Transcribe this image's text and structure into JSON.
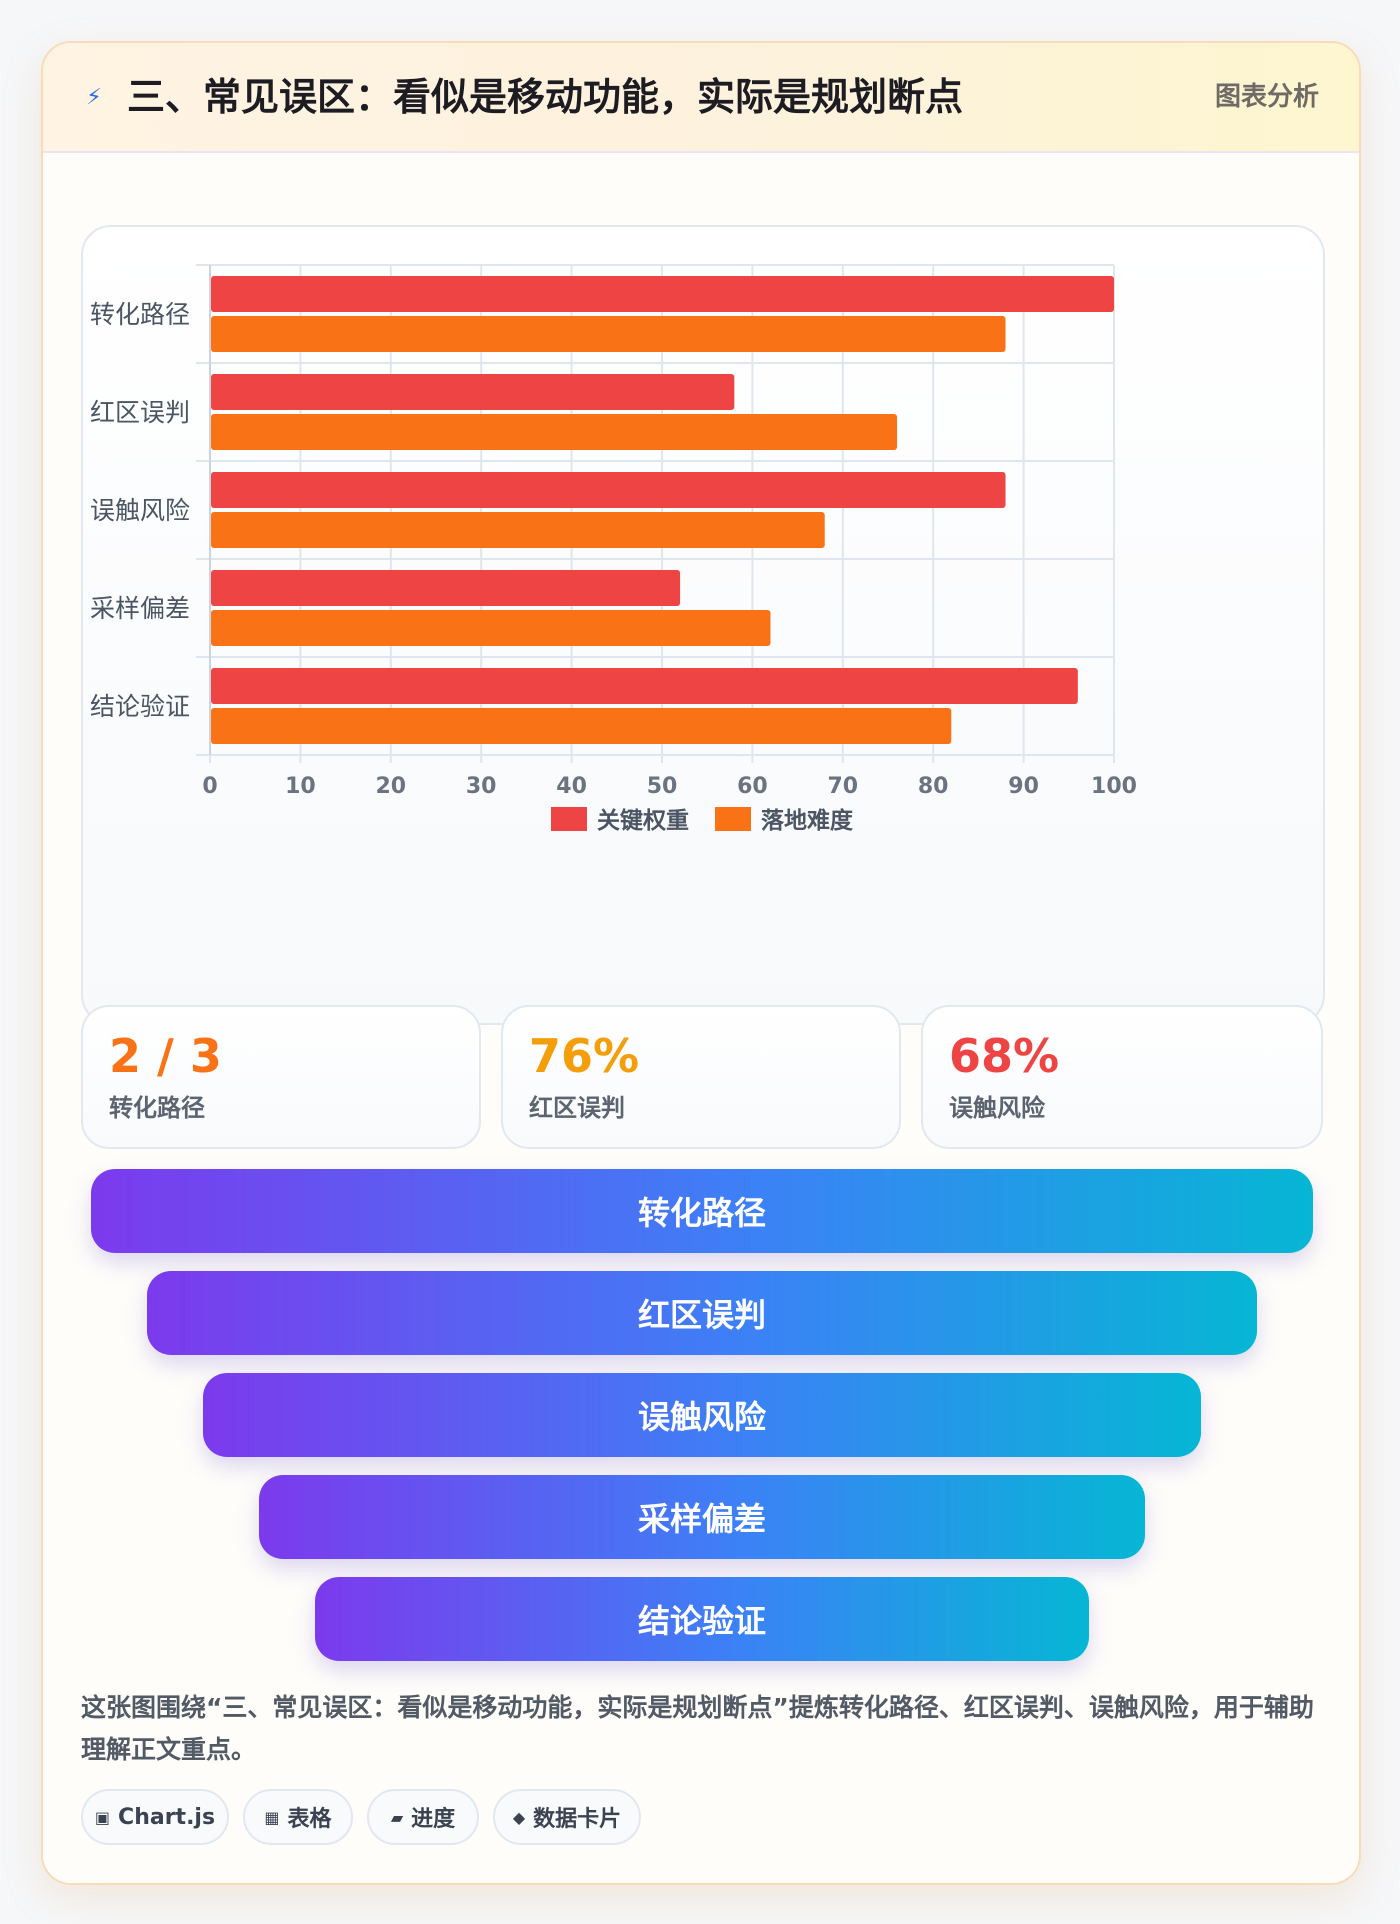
{
  "header": {
    "title": "三、常见误区：看似是移动功能，实际是规划断点",
    "tag": "图表分析",
    "icon": "lightning-icon"
  },
  "chart_data": {
    "type": "bar",
    "orientation": "horizontal",
    "categories": [
      "转化路径",
      "红区误判",
      "误触风险",
      "采样偏差",
      "结论验证"
    ],
    "series": [
      {
        "name": "关键权重",
        "color": "#ef4444",
        "values": [
          100,
          58,
          88,
          52,
          96
        ]
      },
      {
        "name": "落地难度",
        "color": "#f97316",
        "values": [
          88,
          76,
          68,
          62,
          82
        ]
      }
    ],
    "xlim": [
      0,
      100
    ],
    "xticks": [
      0,
      10,
      20,
      30,
      40,
      50,
      60,
      70,
      80,
      90,
      100
    ],
    "grid": true,
    "legend": "bottom"
  },
  "stats": [
    {
      "value": "2 / 3",
      "label": "转化路径",
      "color": "#f97316"
    },
    {
      "value": "76%",
      "label": "红区误判",
      "color": "#f59e0b"
    },
    {
      "value": "68%",
      "label": "误触风险",
      "color": "#ef4444"
    }
  ],
  "funnel": {
    "items": [
      "转化路径",
      "红区误判",
      "误触风险",
      "采样偏差",
      "结论验证"
    ],
    "colors": [
      "#7c3aed",
      "#06b6d4"
    ]
  },
  "summary": "这张图围绕“三、常见误区：看似是移动功能，实际是规划断点”提炼转化路径、红区误判、误触风险，用于辅助理解正文重点。",
  "tags": [
    {
      "icon": "chip-icon",
      "glyph": "▣",
      "label": "Chart.js"
    },
    {
      "icon": "table-icon",
      "glyph": "▦",
      "label": "表格"
    },
    {
      "icon": "progress-icon",
      "glyph": "▰",
      "label": "进度"
    },
    {
      "icon": "diamond-icon",
      "glyph": "◆",
      "label": "数据卡片"
    }
  ]
}
